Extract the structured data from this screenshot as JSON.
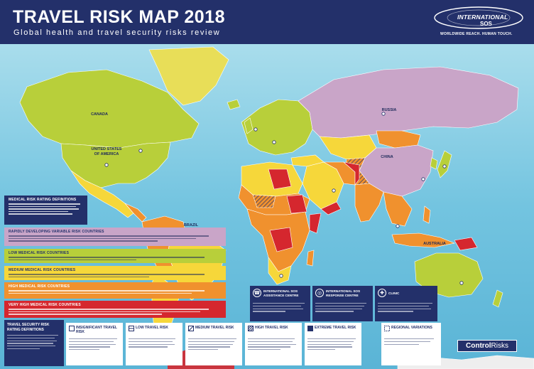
{
  "header": {
    "title": "TRAVEL RISK MAP 2018",
    "subtitle": "Global health and travel security risks review"
  },
  "logo": {
    "line1": "INTERNATIONAL",
    "line2": "SOS",
    "tagline": "WORLDWIDE REACH. HUMAN TOUCH."
  },
  "map_labels": {
    "canada": "CANADA",
    "usa_line1": "UNITED STATES",
    "usa_line2": "OF AMERICA",
    "russia": "RUSSIA",
    "china": "CHINA",
    "brazil": "BRAZIL",
    "australia": "AUSTRALIA"
  },
  "medical_legend": {
    "definitions": "MEDICAL RISK RATING DEFINITIONS",
    "rapid": "RAPIDLY DEVELOPING VARIABLE RISK COUNTRIES",
    "low": "LOW MEDICAL RISK COUNTRIES",
    "medium": "MEDIUM MEDICAL RISK COUNTRIES",
    "high": "HIGH MEDICAL RISK COUNTRIES",
    "very_high": "VERY HIGH MEDICAL RISK COUNTRIES"
  },
  "centres": {
    "assistance": "INTERNATIONAL SOS ASSISTANCE CENTRE",
    "response": "INTERNATIONAL SOS RESPONSE CENTRE",
    "clinic": "CLINIC"
  },
  "travel_legend": {
    "definitions": "TRAVEL SECURITY RISK RATING DEFINITIONS",
    "insignificant": "INSIGNIFICANT TRAVEL RISK",
    "low": "LOW TRAVEL RISK",
    "medium": "MEDIUM TRAVEL RISK",
    "high": "HIGH TRAVEL RISK",
    "extreme": "EXTREME TRAVEL RISK",
    "regional": "REGIONAL VARIATIONS"
  },
  "partner": {
    "part1": "Control",
    "part2": "Risks"
  },
  "colors": {
    "navy": "#23306a",
    "ocean": "#7ecbe4",
    "low": "#b8cf3a",
    "medium": "#f6d73a",
    "high": "#f0912e",
    "very_high": "#d5272e",
    "rapid": "#c9a5c8"
  }
}
